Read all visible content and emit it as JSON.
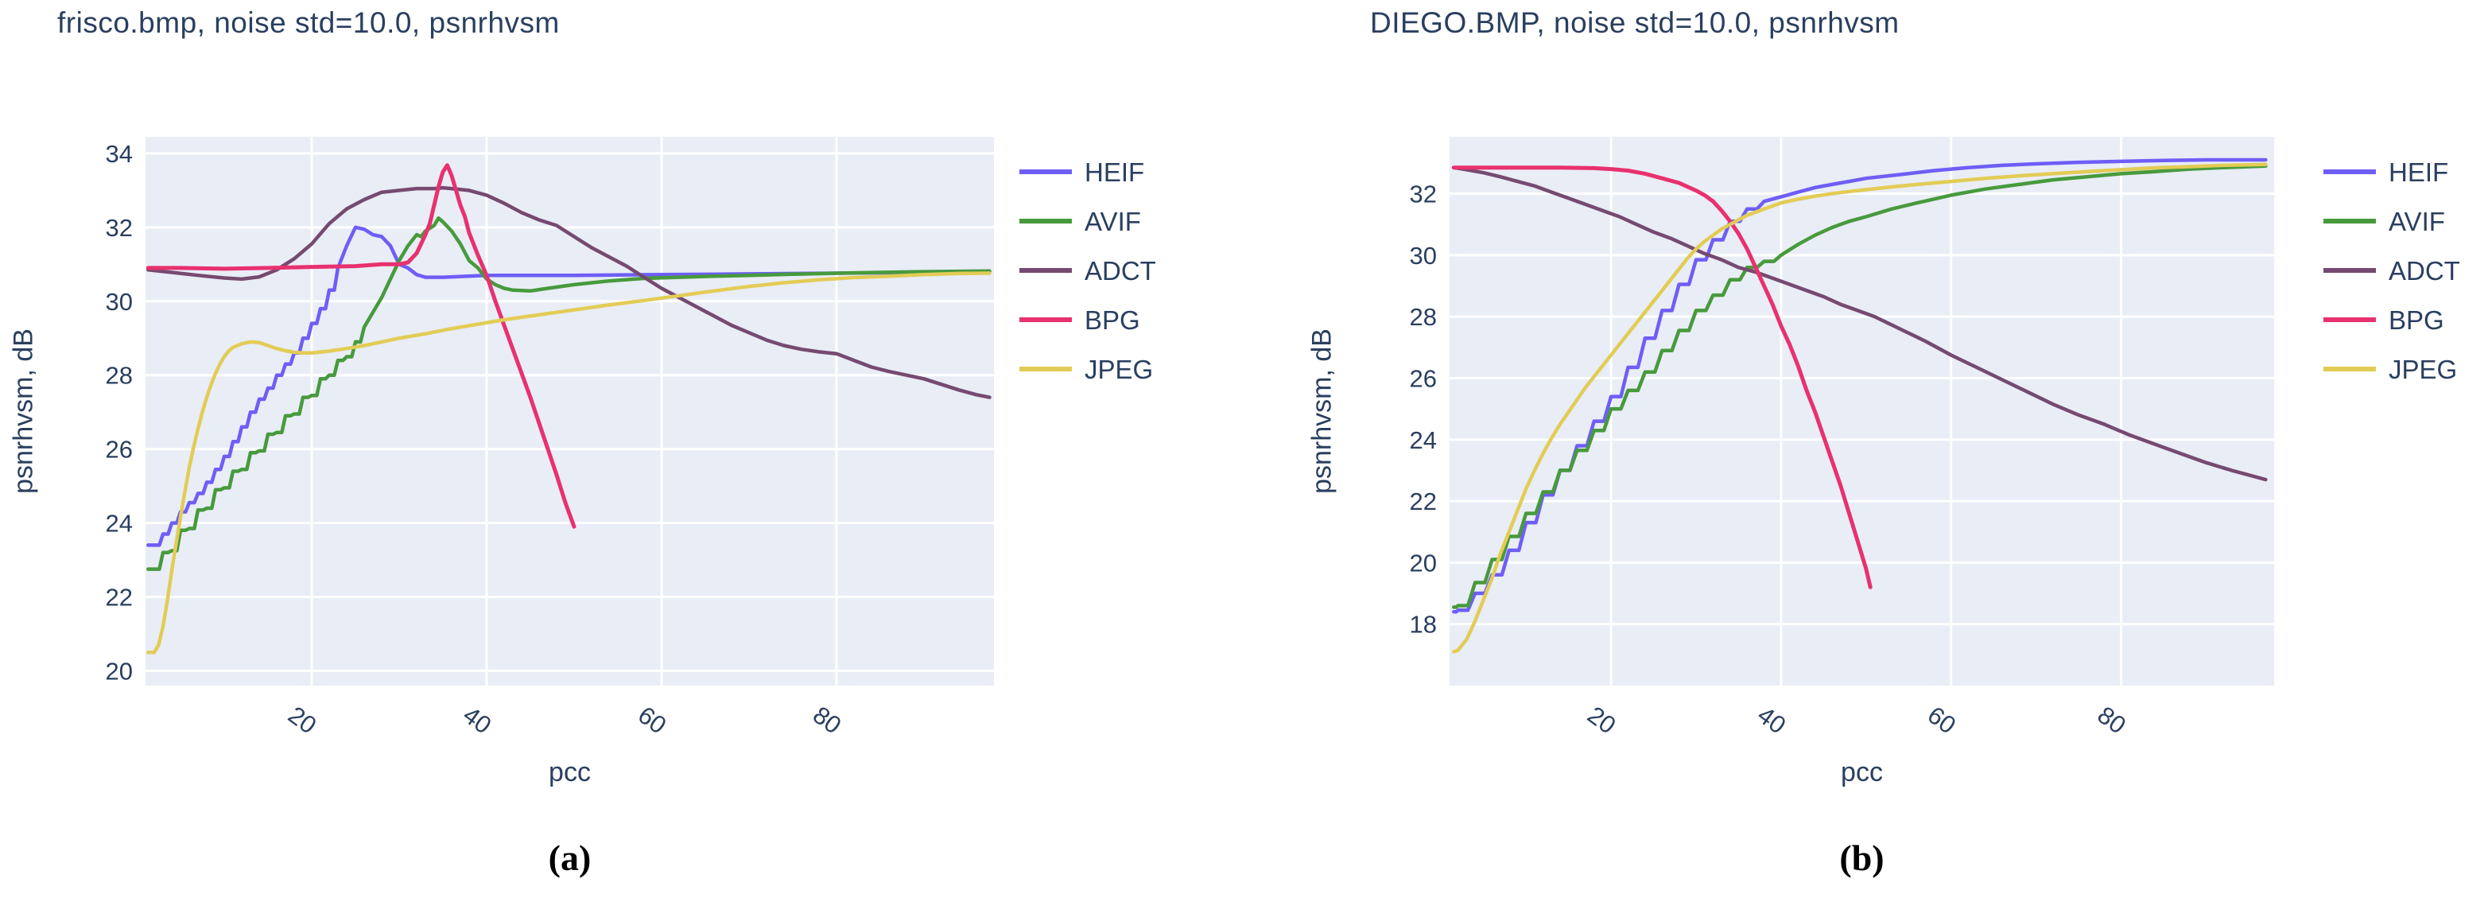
{
  "style": {
    "text_color": "#2a3f5f",
    "plot_bg": "#e9edf6",
    "grid_color": "#ffffff",
    "page_bg": "#ffffff"
  },
  "captions": [
    "(a)",
    "(b)"
  ],
  "chart_data": [
    {
      "type": "line",
      "title": "frisco.bmp, noise std=10.0, psnrhvsm",
      "xlabel": "pcc",
      "ylabel": "psnrhvsm, dB",
      "xlim": [
        1,
        98
      ],
      "ylim": [
        19.6,
        34.45
      ],
      "xticks": [
        20,
        40,
        60,
        80
      ],
      "yticks": [
        20,
        22,
        24,
        26,
        28,
        30,
        32,
        34
      ],
      "grid": true,
      "legend_position": "right",
      "series": [
        {
          "name": "HEIF",
          "color": "#6e5ef6",
          "width": 4.5,
          "steps_until": 23,
          "x": [
            1.3,
            2,
            3,
            4,
            5,
            6,
            7,
            8,
            9,
            10,
            11,
            12,
            13,
            14,
            15,
            16,
            17,
            18,
            19,
            20,
            21,
            22,
            23,
            24,
            25,
            26,
            27,
            28,
            29,
            30,
            31,
            32,
            33,
            35,
            40,
            50,
            60,
            70,
            80,
            90,
            97.5
          ],
          "y": [
            23.4,
            23.4,
            23.7,
            24.0,
            24.3,
            24.55,
            24.8,
            25.1,
            25.45,
            25.8,
            26.2,
            26.6,
            27.0,
            27.35,
            27.65,
            28.0,
            28.3,
            28.6,
            29.0,
            29.4,
            29.8,
            30.3,
            30.9,
            31.5,
            32.0,
            31.95,
            31.8,
            31.75,
            31.5,
            31.0,
            30.9,
            30.72,
            30.65,
            30.65,
            30.7,
            30.7,
            30.72,
            30.74,
            30.76,
            30.78,
            30.8
          ]
        },
        {
          "name": "AVIF",
          "color": "#479a3c",
          "width": 4.5,
          "steps_until": 26,
          "x": [
            1.3,
            2,
            3,
            4,
            5,
            6,
            7,
            8,
            9,
            10,
            11,
            12,
            13,
            14,
            15,
            16,
            17,
            18,
            19,
            20,
            21,
            22,
            23,
            24,
            25,
            26,
            27,
            28,
            29,
            30,
            31,
            32,
            32.5,
            33,
            34,
            34.5,
            35,
            36,
            37,
            38,
            39,
            40,
            41,
            42,
            43,
            45,
            47,
            50,
            54,
            58,
            62,
            66,
            70,
            75,
            80,
            85,
            90,
            97.5
          ],
          "y": [
            22.75,
            22.75,
            23.2,
            23.25,
            23.8,
            23.85,
            24.35,
            24.4,
            24.9,
            24.95,
            25.4,
            25.45,
            25.9,
            25.95,
            26.4,
            26.45,
            26.9,
            26.95,
            27.4,
            27.45,
            27.9,
            28.0,
            28.4,
            28.5,
            28.9,
            29.3,
            29.7,
            30.1,
            30.6,
            31.1,
            31.5,
            31.8,
            31.75,
            31.9,
            32.05,
            32.25,
            32.15,
            31.9,
            31.55,
            31.1,
            30.9,
            30.6,
            30.45,
            30.35,
            30.3,
            30.28,
            30.35,
            30.45,
            30.55,
            30.62,
            30.65,
            30.68,
            30.7,
            30.73,
            30.76,
            30.78,
            30.8,
            30.82
          ]
        },
        {
          "name": "ADCT",
          "color": "#764a70",
          "width": 4.5,
          "x": [
            1.3,
            4,
            7,
            10,
            12,
            14,
            16,
            18,
            20,
            22,
            24,
            26,
            28,
            30,
            32,
            34,
            35,
            36,
            38,
            40,
            42,
            44,
            46,
            48,
            50,
            52,
            54,
            56,
            58,
            60,
            62,
            64,
            66,
            68,
            70,
            72,
            74,
            76,
            78,
            80,
            82,
            84,
            86,
            88,
            90,
            92,
            94,
            96,
            97.5
          ],
          "y": [
            30.85,
            30.78,
            30.7,
            30.63,
            30.6,
            30.66,
            30.85,
            31.15,
            31.55,
            32.1,
            32.5,
            32.75,
            32.95,
            33.0,
            33.05,
            33.05,
            33.07,
            33.05,
            33.0,
            32.87,
            32.65,
            32.4,
            32.2,
            32.05,
            31.75,
            31.45,
            31.2,
            30.95,
            30.65,
            30.35,
            30.1,
            29.85,
            29.6,
            29.35,
            29.15,
            28.95,
            28.8,
            28.7,
            28.63,
            28.58,
            28.4,
            28.22,
            28.1,
            28.0,
            27.9,
            27.75,
            27.6,
            27.47,
            27.4
          ]
        },
        {
          "name": "BPG",
          "color": "#e8316f",
          "width": 5,
          "x": [
            1.3,
            5,
            10,
            15,
            20,
            25,
            28,
            30,
            31,
            32,
            33,
            33.5,
            34,
            34.5,
            35,
            35.5,
            36,
            36.5,
            37,
            37.5,
            38,
            39,
            40,
            41,
            42,
            43,
            44,
            45,
            46,
            47,
            48,
            49,
            50
          ],
          "y": [
            30.9,
            30.9,
            30.88,
            30.9,
            30.93,
            30.95,
            31.0,
            31.0,
            31.05,
            31.3,
            31.8,
            32.1,
            32.6,
            33.1,
            33.5,
            33.68,
            33.4,
            33.0,
            32.6,
            32.3,
            31.85,
            31.25,
            30.7,
            30.0,
            29.35,
            28.7,
            28.05,
            27.4,
            26.7,
            26.0,
            25.3,
            24.55,
            23.9
          ]
        },
        {
          "name": "JPEG",
          "color": "#e2cc55",
          "width": 4.5,
          "x": [
            1.3,
            2,
            2.5,
            3,
            3.5,
            4,
            4.5,
            5,
            5.5,
            6,
            6.5,
            7,
            7.5,
            8,
            8.5,
            9,
            9.5,
            10,
            10.5,
            11,
            12,
            13,
            14,
            15,
            16,
            17,
            18,
            19,
            20,
            22,
            24,
            26,
            28,
            30,
            33,
            36,
            39,
            42,
            45,
            48,
            51,
            54,
            58,
            62,
            66,
            70,
            74,
            78,
            82,
            86,
            90,
            94,
            97.5
          ],
          "y": [
            20.5,
            20.5,
            20.7,
            21.2,
            21.9,
            22.7,
            23.45,
            24.15,
            24.85,
            25.5,
            26.05,
            26.55,
            27.0,
            27.4,
            27.75,
            28.05,
            28.3,
            28.5,
            28.65,
            28.75,
            28.85,
            28.9,
            28.88,
            28.8,
            28.72,
            28.66,
            28.62,
            28.6,
            28.6,
            28.65,
            28.72,
            28.8,
            28.9,
            29.0,
            29.12,
            29.26,
            29.38,
            29.5,
            29.6,
            29.7,
            29.8,
            29.9,
            30.02,
            30.15,
            30.28,
            30.4,
            30.5,
            30.58,
            30.64,
            30.68,
            30.72,
            30.75,
            30.76
          ]
        }
      ]
    },
    {
      "type": "line",
      "title": "DIEGO.BMP, noise std=10.0, psnrhvsm",
      "xlabel": "pcc",
      "ylabel": "psnrhvsm, dB",
      "xlim": [
        1,
        98
      ],
      "ylim": [
        16.0,
        33.85
      ],
      "xticks": [
        20,
        40,
        60,
        80
      ],
      "yticks": [
        18,
        20,
        22,
        24,
        26,
        28,
        30,
        32
      ],
      "grid": true,
      "legend_position": "right",
      "series": [
        {
          "name": "HEIF",
          "color": "#6e5ef6",
          "width": 4.5,
          "steps_until": 38,
          "x": [
            1.5,
            2,
            4,
            6,
            8,
            10,
            12,
            14,
            16,
            18,
            20,
            22,
            24,
            26,
            28,
            30,
            32,
            34,
            36,
            38,
            40,
            42,
            44,
            46,
            48,
            50,
            54,
            58,
            62,
            66,
            70,
            75,
            80,
            85,
            90,
            97
          ],
          "y": [
            18.4,
            18.45,
            19.0,
            19.6,
            20.4,
            21.3,
            22.2,
            23.0,
            23.8,
            24.6,
            25.4,
            26.35,
            27.3,
            28.2,
            29.05,
            29.85,
            30.5,
            31.1,
            31.5,
            31.75,
            31.9,
            32.05,
            32.2,
            32.3,
            32.4,
            32.5,
            32.62,
            32.75,
            32.85,
            32.92,
            32.97,
            33.02,
            33.05,
            33.08,
            33.1,
            33.1
          ]
        },
        {
          "name": "AVIF",
          "color": "#479a3c",
          "width": 4.5,
          "steps_until": 40,
          "x": [
            1.5,
            2,
            4,
            6,
            8,
            10,
            12,
            14,
            16,
            18,
            20,
            22,
            24,
            26,
            28,
            30,
            32,
            34,
            36,
            38,
            40,
            42,
            44,
            46,
            48,
            50,
            53,
            56,
            60,
            64,
            68,
            72,
            76,
            80,
            84,
            88,
            92,
            97
          ],
          "y": [
            18.55,
            18.6,
            19.35,
            20.1,
            20.85,
            21.6,
            22.3,
            23.0,
            23.65,
            24.3,
            25.0,
            25.6,
            26.2,
            26.9,
            27.55,
            28.2,
            28.7,
            29.2,
            29.6,
            29.8,
            30.0,
            30.35,
            30.65,
            30.9,
            31.1,
            31.25,
            31.5,
            31.7,
            31.95,
            32.15,
            32.3,
            32.45,
            32.55,
            32.65,
            32.72,
            32.8,
            32.85,
            32.9
          ]
        },
        {
          "name": "ADCT",
          "color": "#764a70",
          "width": 4.5,
          "x": [
            1.5,
            3,
            5,
            7,
            9,
            11,
            13,
            15,
            17,
            19,
            21,
            23,
            25,
            27,
            29,
            31,
            33,
            35,
            37,
            39,
            41,
            43,
            45,
            47,
            49,
            51,
            54,
            57,
            60,
            63,
            66,
            69,
            72,
            75,
            78,
            81,
            84,
            87,
            90,
            93,
            95,
            97
          ],
          "y": [
            32.85,
            32.78,
            32.68,
            32.55,
            32.4,
            32.25,
            32.05,
            31.85,
            31.65,
            31.45,
            31.25,
            31.0,
            30.75,
            30.55,
            30.3,
            30.05,
            29.85,
            29.6,
            29.45,
            29.25,
            29.05,
            28.85,
            28.65,
            28.4,
            28.2,
            28.0,
            27.6,
            27.2,
            26.75,
            26.35,
            25.95,
            25.55,
            25.15,
            24.8,
            24.5,
            24.15,
            23.85,
            23.55,
            23.25,
            23.0,
            22.85,
            22.7
          ]
        },
        {
          "name": "BPG",
          "color": "#e8316f",
          "width": 5,
          "x": [
            1.5,
            5,
            10,
            14,
            18,
            20,
            22,
            24,
            26,
            28,
            30,
            31,
            32,
            33,
            34,
            35,
            36,
            37,
            38,
            39,
            40,
            41,
            42,
            43,
            44,
            45,
            46,
            47,
            48,
            49,
            50,
            50.5
          ],
          "y": [
            32.85,
            32.85,
            32.85,
            32.85,
            32.83,
            32.8,
            32.75,
            32.65,
            32.5,
            32.35,
            32.1,
            31.95,
            31.75,
            31.45,
            31.1,
            30.7,
            30.2,
            29.6,
            29.0,
            28.4,
            27.7,
            27.1,
            26.4,
            25.6,
            24.9,
            24.1,
            23.3,
            22.5,
            21.6,
            20.7,
            19.8,
            19.2
          ]
        },
        {
          "name": "JPEG",
          "color": "#e2cc55",
          "width": 4.5,
          "x": [
            1.5,
            2,
            3,
            4,
            5,
            6,
            7,
            8,
            9,
            10,
            11,
            12,
            13,
            14,
            15,
            16,
            17,
            18,
            19,
            20,
            21,
            22,
            23,
            24,
            25,
            26,
            27,
            28,
            29,
            30,
            31,
            32,
            33,
            34,
            35,
            36,
            37,
            38,
            39,
            40,
            42,
            44,
            46,
            48,
            50,
            53,
            56,
            60,
            64,
            68,
            72,
            76,
            80,
            84,
            88,
            92,
            97
          ],
          "y": [
            17.1,
            17.15,
            17.5,
            18.1,
            18.8,
            19.5,
            20.3,
            21.0,
            21.7,
            22.4,
            23.0,
            23.55,
            24.05,
            24.5,
            24.9,
            25.3,
            25.7,
            26.05,
            26.4,
            26.75,
            27.1,
            27.45,
            27.8,
            28.15,
            28.5,
            28.85,
            29.2,
            29.55,
            29.9,
            30.2,
            30.45,
            30.65,
            30.85,
            31.0,
            31.15,
            31.3,
            31.4,
            31.5,
            31.6,
            31.7,
            31.82,
            31.92,
            32.0,
            32.07,
            32.13,
            32.22,
            32.3,
            32.4,
            32.5,
            32.58,
            32.65,
            32.72,
            32.78,
            32.84,
            32.88,
            32.92,
            32.95
          ]
        }
      ]
    }
  ]
}
